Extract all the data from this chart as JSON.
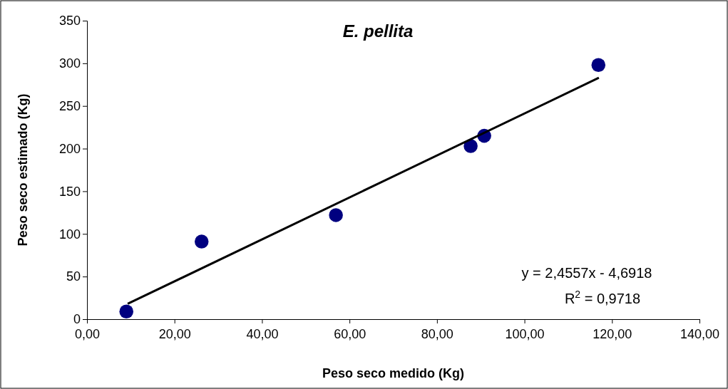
{
  "chart_data": {
    "type": "scatter",
    "title": "E. pellita",
    "xlabel": "Peso seco medido (Kg)",
    "ylabel": "Peso seco estimado (Kg)",
    "xlim": [
      0,
      140
    ],
    "ylim": [
      0,
      350
    ],
    "xticks": [
      {
        "value": 0,
        "label": "0,00"
      },
      {
        "value": 20,
        "label": "20,00"
      },
      {
        "value": 40,
        "label": "40,00"
      },
      {
        "value": 60,
        "label": "60,00"
      },
      {
        "value": 80,
        "label": "80,00"
      },
      {
        "value": 100,
        "label": "100,00"
      },
      {
        "value": 120,
        "label": "120,00"
      },
      {
        "value": 140,
        "label": "140,00"
      }
    ],
    "yticks": [
      0,
      50,
      100,
      150,
      200,
      250,
      300,
      350
    ],
    "grid": false,
    "series": [
      {
        "color": "#000080",
        "marker": "circle",
        "x": [
          9.0,
          26.2,
          56.9,
          87.7,
          90.8,
          116.9
        ],
        "values": [
          9,
          91,
          122,
          203,
          215,
          298
        ]
      },
      {
        "type": "line",
        "color": "#000000",
        "marker": "none",
        "line_style": "solid",
        "x": [
          9.3,
          117
        ],
        "values": [
          18,
          283
        ]
      }
    ],
    "annotations": [
      "y = 2,4557x - 4,6918",
      "R$^{2}$ = 0,9718"
    ]
  }
}
